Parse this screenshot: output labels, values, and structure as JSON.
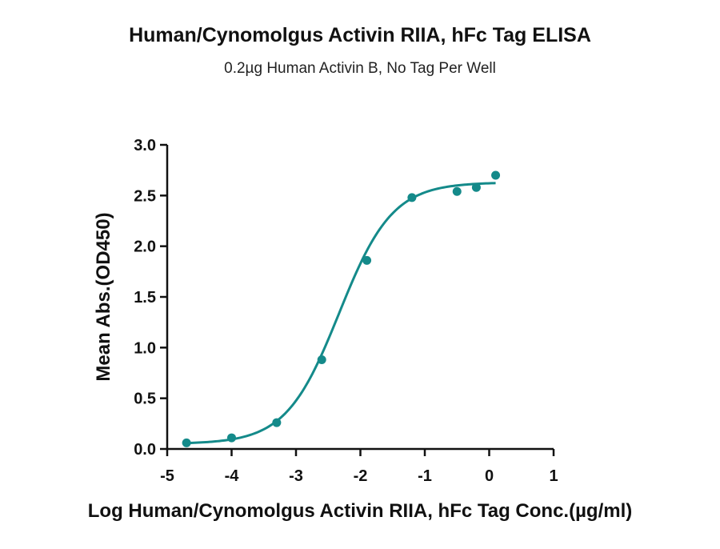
{
  "chart_data": {
    "type": "scatter",
    "title": "Human/Cynomolgus Activin RIIA, hFc Tag ELISA",
    "subtitle": "0.2µg Human Activin B, No Tag Per Well",
    "xlabel": "Log Human/Cynomolgus Activin RIIA, hFc Tag Conc.(µg/ml)",
    "ylabel": "Mean Abs.(OD450)",
    "xlim": [
      -5,
      1
    ],
    "ylim": [
      0,
      3
    ],
    "x_ticks": [
      "-5",
      "-4",
      "-3",
      "-2",
      "-1",
      "0",
      "1"
    ],
    "y_ticks": [
      "0.0",
      "0.5",
      "1.0",
      "1.5",
      "2.0",
      "2.5",
      "3.0"
    ],
    "grid": false,
    "color": "#148a8a",
    "series": [
      {
        "x": [
          -4.7,
          -4.0,
          -3.3,
          -2.6,
          -1.9,
          -1.2,
          -0.5,
          -0.2,
          0.1
        ],
        "y": [
          0.06,
          0.11,
          0.26,
          0.88,
          1.86,
          2.48,
          2.54,
          2.58,
          2.7
        ]
      }
    ],
    "fit_curve": {
      "type": "4PL",
      "bottom": 0.05,
      "top": 2.63,
      "log_ec50": -2.33,
      "hill_slope": 1.05,
      "x_range": [
        -4.7,
        0.1
      ]
    }
  }
}
